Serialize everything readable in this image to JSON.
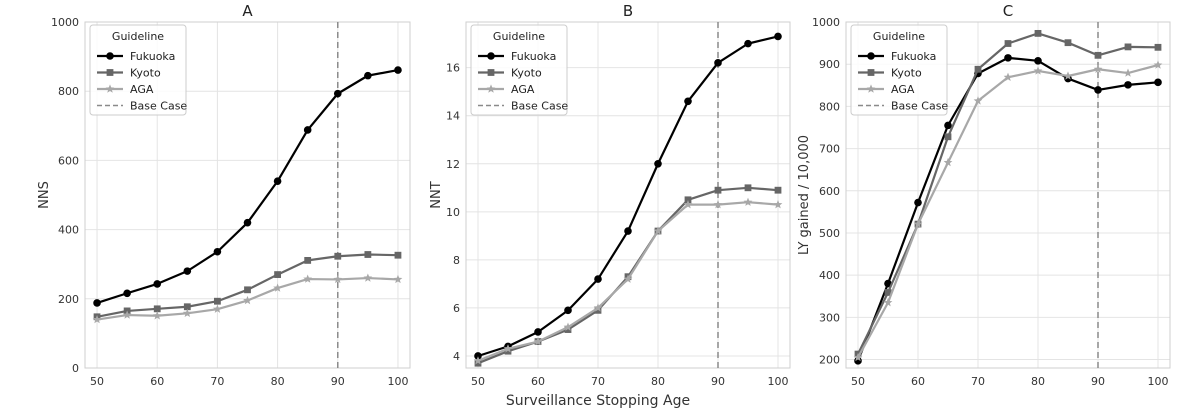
{
  "figure": {
    "xlabel": "Surveillance Stopping Age"
  },
  "chart_data": [
    {
      "type": "line",
      "title": "A",
      "xlabel": "",
      "ylabel": "NNS",
      "xlim": [
        48,
        102
      ],
      "ylim": [
        0,
        1000
      ],
      "xticks": [
        50,
        60,
        70,
        80,
        90,
        100
      ],
      "yticks": [
        0,
        200,
        400,
        600,
        800,
        1000
      ],
      "grid": true,
      "legend": {
        "title": "Guideline",
        "placement": "top-left"
      },
      "x": [
        50,
        55,
        60,
        65,
        70,
        75,
        80,
        85,
        90,
        95,
        100
      ],
      "series": [
        {
          "name": "Fukuoka",
          "marker": "circle",
          "color": "#000000",
          "values": [
            188,
            216,
            243,
            280,
            336,
            420,
            540,
            688,
            793,
            845,
            861
          ]
        },
        {
          "name": "Kyoto",
          "marker": "square",
          "color": "#666666",
          "values": [
            148,
            165,
            171,
            177,
            193,
            226,
            270,
            311,
            323,
            328,
            326
          ]
        },
        {
          "name": "AGA",
          "marker": "star",
          "color": "#a8a8a8",
          "values": [
            140,
            153,
            151,
            158,
            170,
            195,
            231,
            257,
            256,
            260,
            256
          ]
        }
      ],
      "vline": {
        "name": "Base Case",
        "x": 90,
        "color": "#8a8a8a"
      }
    },
    {
      "type": "line",
      "title": "B",
      "xlabel": "",
      "ylabel": "NNT",
      "xlim": [
        48,
        102
      ],
      "ylim": [
        3.5,
        17.9
      ],
      "xticks": [
        50,
        60,
        70,
        80,
        90,
        100
      ],
      "yticks": [
        4,
        6,
        8,
        10,
        12,
        14,
        16
      ],
      "grid": true,
      "legend": {
        "title": "Guideline",
        "placement": "top-left"
      },
      "x": [
        50,
        55,
        60,
        65,
        70,
        75,
        80,
        85,
        90,
        95,
        100
      ],
      "series": [
        {
          "name": "Fukuoka",
          "marker": "circle",
          "color": "#000000",
          "values": [
            4.0,
            4.4,
            5.0,
            5.9,
            7.2,
            9.2,
            12.0,
            14.6,
            16.2,
            17.0,
            17.3
          ]
        },
        {
          "name": "Kyoto",
          "marker": "square",
          "color": "#666666",
          "values": [
            3.7,
            4.2,
            4.6,
            5.1,
            5.9,
            7.3,
            9.2,
            10.5,
            10.9,
            11.0,
            10.9
          ]
        },
        {
          "name": "AGA",
          "marker": "star",
          "color": "#a8a8a8",
          "values": [
            3.8,
            4.3,
            4.6,
            5.2,
            6.0,
            7.2,
            9.2,
            10.3,
            10.3,
            10.4,
            10.3
          ]
        }
      ],
      "vline": {
        "name": "Base Case",
        "x": 90,
        "color": "#8a8a8a"
      }
    },
    {
      "type": "line",
      "title": "C",
      "xlabel": "",
      "ylabel": "LY gained / 10,000",
      "xlim": [
        48,
        102
      ],
      "ylim": [
        180,
        1000
      ],
      "xticks": [
        50,
        60,
        70,
        80,
        90,
        100
      ],
      "yticks": [
        200,
        300,
        400,
        500,
        600,
        700,
        800,
        900,
        1000
      ],
      "grid": true,
      "legend": {
        "title": "Guideline",
        "placement": "top-left"
      },
      "x": [
        50,
        55,
        60,
        65,
        70,
        75,
        80,
        85,
        90,
        95,
        100
      ],
      "series": [
        {
          "name": "Fukuoka",
          "marker": "circle",
          "color": "#000000",
          "values": [
            197,
            380,
            572,
            755,
            878,
            915,
            908,
            866,
            839,
            851,
            857
          ]
        },
        {
          "name": "Kyoto",
          "marker": "square",
          "color": "#666666",
          "values": [
            213,
            359,
            521,
            728,
            888,
            949,
            973,
            951,
            921,
            941,
            940
          ]
        },
        {
          "name": "AGA",
          "marker": "star",
          "color": "#a8a8a8",
          "values": [
            205,
            335,
            521,
            667,
            813,
            869,
            884,
            872,
            888,
            879,
            898
          ]
        }
      ],
      "vline": {
        "name": "Base Case",
        "x": 90,
        "color": "#8a8a8a"
      }
    }
  ]
}
